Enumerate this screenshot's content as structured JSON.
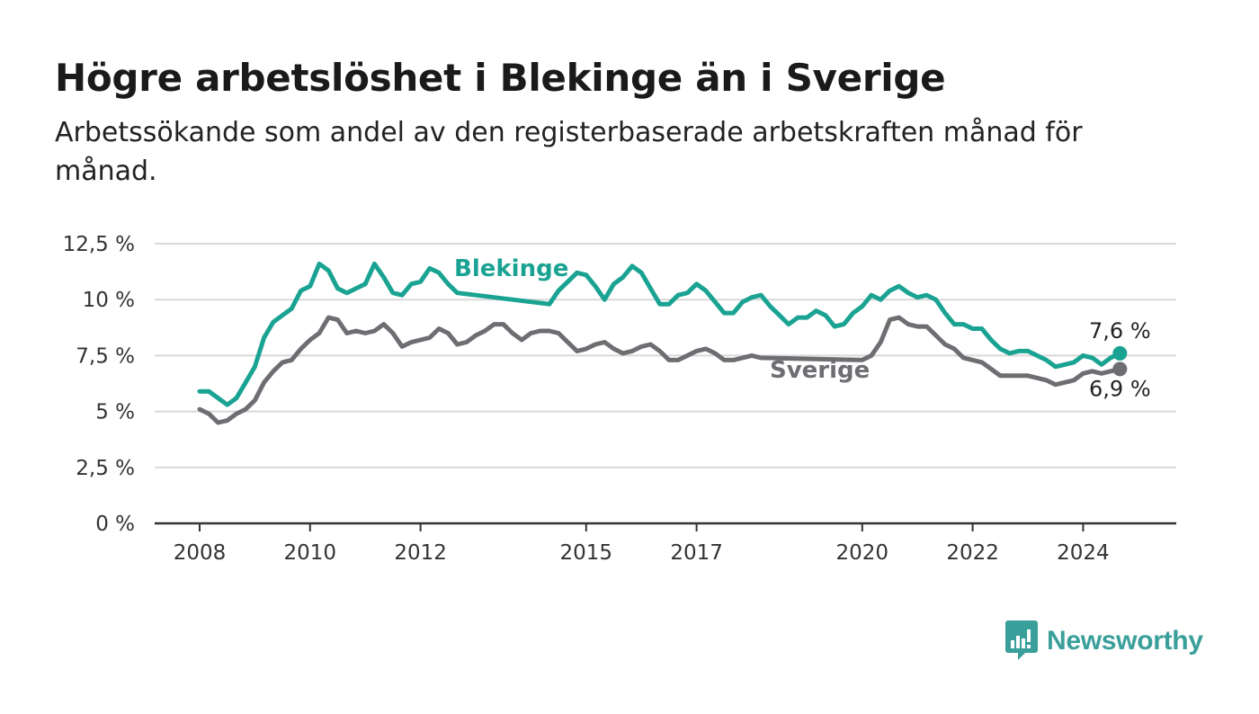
{
  "title": "Högre arbetslöshet i Blekinge än i Sverige",
  "subtitle": "Arbetssökande som andel av den registerbaserade arbetskraften månad för månad.",
  "brand": {
    "name": "Newsworthy",
    "icon": "newsworthy-logo-icon",
    "color": "#3a9f9a"
  },
  "chart_data": {
    "type": "line",
    "title": "Högre arbetslöshet i Blekinge än i Sverige",
    "subtitle": "Arbetssökande som andel av den registerbaserade arbetskraften månad för månad.",
    "xlabel": "",
    "ylabel": "",
    "x_range": [
      "2008-01",
      "2024-09"
    ],
    "ylim": [
      0,
      12.5
    ],
    "y_ticks": [
      0,
      2.5,
      5,
      7.5,
      10,
      12.5
    ],
    "y_tick_labels": [
      "0 %",
      "2,5 %",
      "5 %",
      "7,5 %",
      "10 %",
      "12,5 %"
    ],
    "x_ticks": [
      "2008-01",
      "2010-01",
      "2012-01",
      "2015-01",
      "2017-01",
      "2020-01",
      "2022-01",
      "2024-01"
    ],
    "x_tick_labels": [
      "2008",
      "2010",
      "2012",
      "2015",
      "2017",
      "2020",
      "2022",
      "2024"
    ],
    "grid": true,
    "legend": "inline labels",
    "series": [
      {
        "name": "Blekinge",
        "color": "#1aa393",
        "end_label": "7,6 %",
        "points": [
          [
            "2008-01",
            5.9
          ],
          [
            "2008-03",
            5.9
          ],
          [
            "2008-05",
            5.6
          ],
          [
            "2008-07",
            5.3
          ],
          [
            "2008-09",
            5.6
          ],
          [
            "2008-11",
            6.3
          ],
          [
            "2009-01",
            7.0
          ],
          [
            "2009-03",
            8.3
          ],
          [
            "2009-05",
            9.0
          ],
          [
            "2009-07",
            9.3
          ],
          [
            "2009-09",
            9.6
          ],
          [
            "2009-11",
            10.4
          ],
          [
            "2010-01",
            10.6
          ],
          [
            "2010-03",
            11.6
          ],
          [
            "2010-05",
            11.3
          ],
          [
            "2010-07",
            10.5
          ],
          [
            "2010-09",
            10.3
          ],
          [
            "2010-11",
            10.5
          ],
          [
            "2011-01",
            10.7
          ],
          [
            "2011-03",
            11.6
          ],
          [
            "2011-05",
            11.0
          ],
          [
            "2011-07",
            10.3
          ],
          [
            "2011-09",
            10.2
          ],
          [
            "2011-11",
            10.7
          ],
          [
            "2012-01",
            10.8
          ],
          [
            "2012-03",
            11.4
          ],
          [
            "2012-05",
            11.2
          ],
          [
            "2012-07",
            10.7
          ],
          [
            "2012-09",
            10.3
          ],
          [
            "2014-05",
            9.8
          ],
          [
            "2014-07",
            10.4
          ],
          [
            "2014-09",
            10.8
          ],
          [
            "2014-11",
            11.2
          ],
          [
            "2015-01",
            11.1
          ],
          [
            "2015-03",
            10.6
          ],
          [
            "2015-05",
            10.0
          ],
          [
            "2015-07",
            10.7
          ],
          [
            "2015-09",
            11.0
          ],
          [
            "2015-11",
            11.5
          ],
          [
            "2016-01",
            11.2
          ],
          [
            "2016-03",
            10.5
          ],
          [
            "2016-05",
            9.8
          ],
          [
            "2016-07",
            9.8
          ],
          [
            "2016-09",
            10.2
          ],
          [
            "2016-11",
            10.3
          ],
          [
            "2017-01",
            10.7
          ],
          [
            "2017-03",
            10.4
          ],
          [
            "2017-05",
            9.9
          ],
          [
            "2017-07",
            9.4
          ],
          [
            "2017-09",
            9.4
          ],
          [
            "2017-11",
            9.9
          ],
          [
            "2018-01",
            10.1
          ],
          [
            "2018-03",
            10.2
          ],
          [
            "2018-05",
            9.7
          ],
          [
            "2018-07",
            9.3
          ],
          [
            "2018-09",
            8.9
          ],
          [
            "2018-11",
            9.2
          ],
          [
            "2019-01",
            9.2
          ],
          [
            "2019-03",
            9.5
          ],
          [
            "2019-05",
            9.3
          ],
          [
            "2019-07",
            8.8
          ],
          [
            "2019-09",
            8.9
          ],
          [
            "2019-11",
            9.4
          ],
          [
            "2020-01",
            9.7
          ],
          [
            "2020-03",
            10.2
          ],
          [
            "2020-05",
            10.0
          ],
          [
            "2020-07",
            10.4
          ],
          [
            "2020-09",
            10.6
          ],
          [
            "2020-11",
            10.3
          ],
          [
            "2021-01",
            10.1
          ],
          [
            "2021-03",
            10.2
          ],
          [
            "2021-05",
            10.0
          ],
          [
            "2021-07",
            9.4
          ],
          [
            "2021-09",
            8.9
          ],
          [
            "2021-11",
            8.9
          ],
          [
            "2022-01",
            8.7
          ],
          [
            "2022-03",
            8.7
          ],
          [
            "2022-05",
            8.2
          ],
          [
            "2022-07",
            7.8
          ],
          [
            "2022-09",
            7.6
          ],
          [
            "2022-11",
            7.7
          ],
          [
            "2023-01",
            7.7
          ],
          [
            "2023-03",
            7.5
          ],
          [
            "2023-05",
            7.3
          ],
          [
            "2023-07",
            7.0
          ],
          [
            "2023-09",
            7.1
          ],
          [
            "2023-11",
            7.2
          ],
          [
            "2024-01",
            7.5
          ],
          [
            "2024-03",
            7.4
          ],
          [
            "2024-05",
            7.1
          ],
          [
            "2024-07",
            7.4
          ],
          [
            "2024-09",
            7.6
          ]
        ]
      },
      {
        "name": "Sverige",
        "color": "#6e6d72",
        "end_label": "6,9 %",
        "points": [
          [
            "2008-01",
            5.1
          ],
          [
            "2008-03",
            4.9
          ],
          [
            "2008-05",
            4.5
          ],
          [
            "2008-07",
            4.6
          ],
          [
            "2008-09",
            4.9
          ],
          [
            "2008-11",
            5.1
          ],
          [
            "2009-01",
            5.5
          ],
          [
            "2009-03",
            6.3
          ],
          [
            "2009-05",
            6.8
          ],
          [
            "2009-07",
            7.2
          ],
          [
            "2009-09",
            7.3
          ],
          [
            "2009-11",
            7.8
          ],
          [
            "2010-01",
            8.2
          ],
          [
            "2010-03",
            8.5
          ],
          [
            "2010-05",
            9.2
          ],
          [
            "2010-07",
            9.1
          ],
          [
            "2010-09",
            8.5
          ],
          [
            "2010-11",
            8.6
          ],
          [
            "2011-01",
            8.5
          ],
          [
            "2011-03",
            8.6
          ],
          [
            "2011-05",
            8.9
          ],
          [
            "2011-07",
            8.5
          ],
          [
            "2011-09",
            7.9
          ],
          [
            "2011-11",
            8.1
          ],
          [
            "2012-01",
            8.2
          ],
          [
            "2012-03",
            8.3
          ],
          [
            "2012-05",
            8.7
          ],
          [
            "2012-07",
            8.5
          ],
          [
            "2012-09",
            8.0
          ],
          [
            "2012-11",
            8.1
          ],
          [
            "2013-01",
            8.4
          ],
          [
            "2013-03",
            8.6
          ],
          [
            "2013-05",
            8.9
          ],
          [
            "2013-07",
            8.9
          ],
          [
            "2013-09",
            8.5
          ],
          [
            "2013-11",
            8.2
          ],
          [
            "2014-01",
            8.5
          ],
          [
            "2014-03",
            8.6
          ],
          [
            "2014-05",
            8.6
          ],
          [
            "2014-07",
            8.5
          ],
          [
            "2014-09",
            8.1
          ],
          [
            "2014-11",
            7.7
          ],
          [
            "2015-01",
            7.8
          ],
          [
            "2015-03",
            8.0
          ],
          [
            "2015-05",
            8.1
          ],
          [
            "2015-07",
            7.8
          ],
          [
            "2015-09",
            7.6
          ],
          [
            "2015-11",
            7.7
          ],
          [
            "2016-01",
            7.9
          ],
          [
            "2016-03",
            8.0
          ],
          [
            "2016-05",
            7.7
          ],
          [
            "2016-07",
            7.3
          ],
          [
            "2016-09",
            7.3
          ],
          [
            "2016-11",
            7.5
          ],
          [
            "2017-01",
            7.7
          ],
          [
            "2017-03",
            7.8
          ],
          [
            "2017-05",
            7.6
          ],
          [
            "2017-07",
            7.3
          ],
          [
            "2017-09",
            7.3
          ],
          [
            "2017-11",
            7.4
          ],
          [
            "2018-01",
            7.5
          ],
          [
            "2018-03",
            7.4
          ],
          [
            "2020-01",
            7.3
          ],
          [
            "2020-03",
            7.5
          ],
          [
            "2020-05",
            8.1
          ],
          [
            "2020-07",
            9.1
          ],
          [
            "2020-09",
            9.2
          ],
          [
            "2020-11",
            8.9
          ],
          [
            "2021-01",
            8.8
          ],
          [
            "2021-03",
            8.8
          ],
          [
            "2021-05",
            8.4
          ],
          [
            "2021-07",
            8.0
          ],
          [
            "2021-09",
            7.8
          ],
          [
            "2021-11",
            7.4
          ],
          [
            "2022-01",
            7.3
          ],
          [
            "2022-03",
            7.2
          ],
          [
            "2022-05",
            6.9
          ],
          [
            "2022-07",
            6.6
          ],
          [
            "2022-09",
            6.6
          ],
          [
            "2022-11",
            6.6
          ],
          [
            "2023-01",
            6.6
          ],
          [
            "2023-03",
            6.5
          ],
          [
            "2023-05",
            6.4
          ],
          [
            "2023-07",
            6.2
          ],
          [
            "2023-09",
            6.3
          ],
          [
            "2023-11",
            6.4
          ],
          [
            "2024-01",
            6.7
          ],
          [
            "2024-03",
            6.8
          ],
          [
            "2024-05",
            6.7
          ],
          [
            "2024-07",
            6.8
          ],
          [
            "2024-09",
            6.9
          ]
        ]
      }
    ]
  }
}
